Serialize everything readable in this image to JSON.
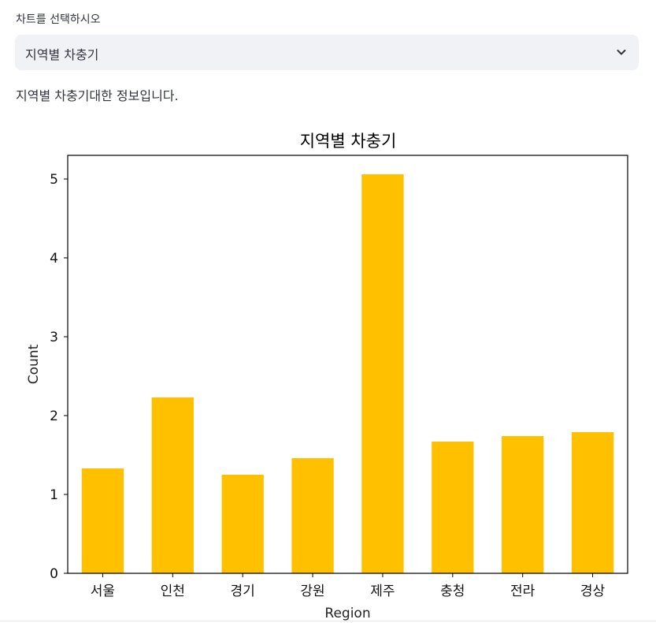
{
  "select": {
    "label": "차트를 선택하시오",
    "value": "지역별 차충기",
    "icon": "chevron-down-icon"
  },
  "description": "지역별 차충기대한 정보입니다.",
  "chart_data": {
    "type": "bar",
    "title": "지역별 차충기",
    "xlabel": "Region",
    "ylabel": "Count",
    "categories": [
      "서울",
      "인천",
      "경기",
      "강원",
      "제주",
      "충청",
      "전라",
      "경상"
    ],
    "values": [
      1.33,
      2.23,
      1.25,
      1.46,
      5.06,
      1.67,
      1.74,
      1.79
    ],
    "ylim": [
      0,
      5.3
    ],
    "yticks": [
      0,
      1,
      2,
      3,
      4,
      5
    ],
    "color": "#ffc000",
    "grid": false,
    "legend": "none"
  }
}
